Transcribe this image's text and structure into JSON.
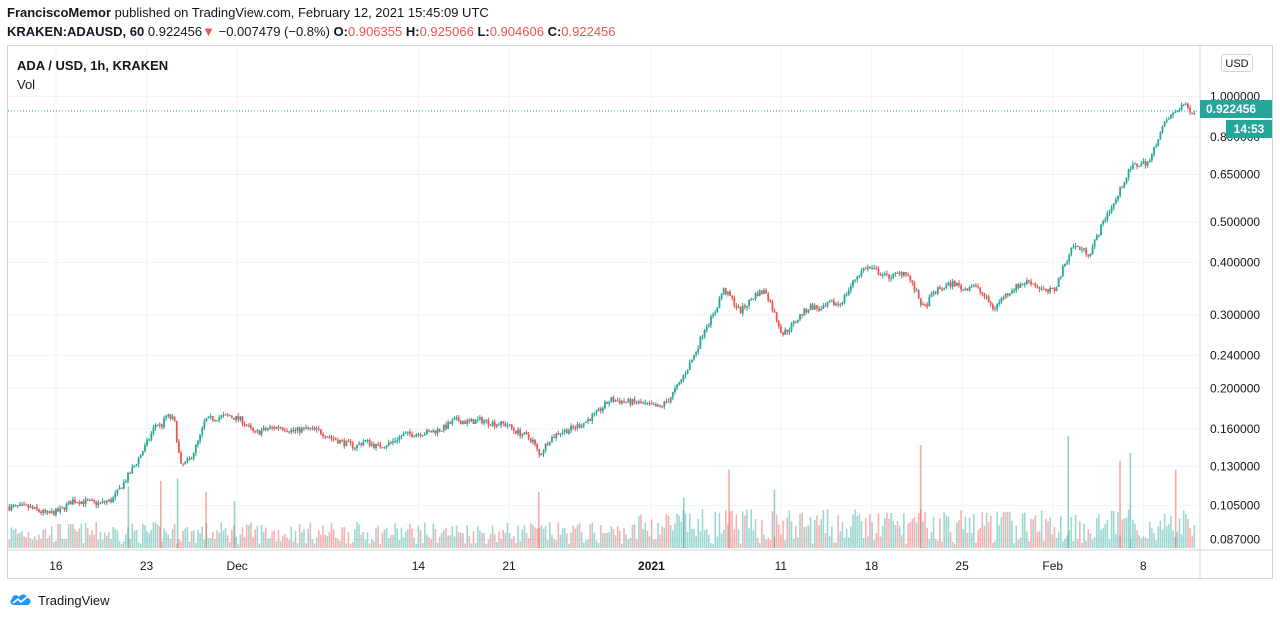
{
  "header": {
    "author": "FranciscoMemor",
    "published_text": "published on TradingView.com, February 12, 2021 15:45:09 UTC",
    "symbol": "KRAKEN:ADAUSD, 60",
    "last": "0.922456",
    "change": "−0.007479 (−0.8%)",
    "o_label": "O:",
    "o": "0.906355",
    "h_label": "H:",
    "h": "0.925066",
    "l_label": "L:",
    "l": "0.904606",
    "c_label": "C:",
    "c": "0.922456"
  },
  "pane": {
    "title": "ADA / USD, 1h, KRAKEN",
    "volume_label": "Vol",
    "currency_badge": "USD",
    "last_price_tag": "0.922456",
    "countdown_tag": "14:53"
  },
  "footer": {
    "brand": "TradingView"
  },
  "colors": {
    "up": "#26a69a",
    "down": "#ef5350",
    "grid": "#f0f3fa",
    "axis_text": "#131722"
  },
  "chart_data": {
    "type": "line",
    "scale": "log",
    "title": "ADA / USD, 1h, KRAKEN",
    "ylabel": "USD",
    "ylim": [
      0.083,
      1.32
    ],
    "y_ticks": [
      {
        "value": 1.0,
        "label": "1.000000"
      },
      {
        "value": 0.8,
        "label": "0.800000"
      },
      {
        "value": 0.65,
        "label": "0.650000"
      },
      {
        "value": 0.5,
        "label": "0.500000"
      },
      {
        "value": 0.4,
        "label": "0.400000"
      },
      {
        "value": 0.3,
        "label": "0.300000"
      },
      {
        "value": 0.24,
        "label": "0.240000"
      },
      {
        "value": 0.2,
        "label": "0.200000"
      },
      {
        "value": 0.16,
        "label": "0.160000"
      },
      {
        "value": 0.13,
        "label": "0.130000"
      },
      {
        "value": 0.105,
        "label": "0.105000"
      },
      {
        "value": 0.087,
        "label": "0.087000"
      }
    ],
    "x_ticks": [
      {
        "day": 0,
        "label": "16"
      },
      {
        "day": 7,
        "label": "23"
      },
      {
        "day": 14,
        "label": "Dec"
      },
      {
        "day": 28,
        "label": "14"
      },
      {
        "day": 35,
        "label": "21"
      },
      {
        "day": 46,
        "label": "2021"
      },
      {
        "day": 56,
        "label": "11"
      },
      {
        "day": 63,
        "label": "18"
      },
      {
        "day": 70,
        "label": "25"
      },
      {
        "day": 77,
        "label": "Feb"
      },
      {
        "day": 84,
        "label": "8"
      }
    ],
    "x_range_days": [
      -3.7,
      88.3
    ],
    "x_start": "2020-11-12",
    "price_path": [
      [
        -3.6,
        0.104
      ],
      [
        -2.0,
        0.104
      ],
      [
        -0.5,
        0.1
      ],
      [
        0.5,
        0.102
      ],
      [
        1.5,
        0.108
      ],
      [
        2.5,
        0.107
      ],
      [
        3.5,
        0.106
      ],
      [
        4.5,
        0.108
      ],
      [
        5.5,
        0.12
      ],
      [
        6.5,
        0.135
      ],
      [
        7.3,
        0.15
      ],
      [
        7.9,
        0.165
      ],
      [
        8.3,
        0.162
      ],
      [
        8.7,
        0.172
      ],
      [
        9.3,
        0.168
      ],
      [
        9.8,
        0.13
      ],
      [
        10.5,
        0.135
      ],
      [
        11.2,
        0.15
      ],
      [
        11.7,
        0.168
      ],
      [
        12.5,
        0.17
      ],
      [
        13.5,
        0.172
      ],
      [
        14.5,
        0.168
      ],
      [
        15.5,
        0.156
      ],
      [
        16.5,
        0.16
      ],
      [
        17.5,
        0.162
      ],
      [
        18.5,
        0.158
      ],
      [
        19.5,
        0.16
      ],
      [
        20.5,
        0.158
      ],
      [
        21.5,
        0.152
      ],
      [
        22.5,
        0.148
      ],
      [
        23.3,
        0.145
      ],
      [
        24.0,
        0.15
      ],
      [
        25.0,
        0.145
      ],
      [
        26.0,
        0.148
      ],
      [
        27.0,
        0.155
      ],
      [
        28.0,
        0.156
      ],
      [
        29.0,
        0.157
      ],
      [
        30.0,
        0.16
      ],
      [
        31.0,
        0.168
      ],
      [
        32.0,
        0.166
      ],
      [
        33.0,
        0.168
      ],
      [
        34.0,
        0.165
      ],
      [
        35.0,
        0.164
      ],
      [
        35.5,
        0.159
      ],
      [
        36.3,
        0.155
      ],
      [
        37.0,
        0.15
      ],
      [
        37.5,
        0.138
      ],
      [
        38.2,
        0.15
      ],
      [
        39.0,
        0.157
      ],
      [
        40.0,
        0.16
      ],
      [
        41.0,
        0.166
      ],
      [
        42.0,
        0.175
      ],
      [
        43.0,
        0.188
      ],
      [
        44.0,
        0.186
      ],
      [
        45.0,
        0.185
      ],
      [
        46.0,
        0.182
      ],
      [
        46.8,
        0.18
      ],
      [
        47.5,
        0.188
      ],
      [
        48.3,
        0.205
      ],
      [
        49.0,
        0.225
      ],
      [
        49.6,
        0.245
      ],
      [
        50.3,
        0.28
      ],
      [
        51.0,
        0.3
      ],
      [
        51.7,
        0.345
      ],
      [
        52.3,
        0.33
      ],
      [
        53.0,
        0.305
      ],
      [
        53.7,
        0.322
      ],
      [
        54.3,
        0.338
      ],
      [
        55.0,
        0.342
      ],
      [
        55.7,
        0.3
      ],
      [
        56.3,
        0.27
      ],
      [
        57.0,
        0.282
      ],
      [
        57.7,
        0.3
      ],
      [
        58.5,
        0.315
      ],
      [
        59.3,
        0.308
      ],
      [
        60.0,
        0.32
      ],
      [
        60.7,
        0.318
      ],
      [
        61.3,
        0.34
      ],
      [
        62.0,
        0.37
      ],
      [
        62.7,
        0.39
      ],
      [
        63.5,
        0.383
      ],
      [
        64.3,
        0.37
      ],
      [
        65.0,
        0.373
      ],
      [
        65.8,
        0.382
      ],
      [
        66.5,
        0.345
      ],
      [
        67.2,
        0.31
      ],
      [
        68.0,
        0.34
      ],
      [
        68.8,
        0.35
      ],
      [
        69.5,
        0.358
      ],
      [
        70.3,
        0.345
      ],
      [
        71.0,
        0.355
      ],
      [
        71.8,
        0.335
      ],
      [
        72.6,
        0.31
      ],
      [
        73.3,
        0.33
      ],
      [
        74.0,
        0.345
      ],
      [
        74.7,
        0.355
      ],
      [
        75.4,
        0.362
      ],
      [
        76.0,
        0.35
      ],
      [
        76.7,
        0.34
      ],
      [
        77.3,
        0.345
      ],
      [
        78.0,
        0.39
      ],
      [
        78.7,
        0.44
      ],
      [
        79.4,
        0.43
      ],
      [
        80.0,
        0.42
      ],
      [
        80.7,
        0.47
      ],
      [
        81.3,
        0.52
      ],
      [
        82.0,
        0.56
      ],
      [
        82.7,
        0.63
      ],
      [
        83.3,
        0.68
      ],
      [
        84.0,
        0.69
      ],
      [
        84.7,
        0.7
      ],
      [
        85.3,
        0.8
      ],
      [
        86.0,
        0.88
      ],
      [
        86.7,
        0.92
      ],
      [
        87.2,
        0.96
      ],
      [
        87.7,
        0.93
      ],
      [
        88.1,
        0.922
      ]
    ],
    "volume_spikes": [
      {
        "day": 5.6,
        "h": 0.55
      },
      {
        "day": 8.1,
        "h": 0.6
      },
      {
        "day": 9.4,
        "h": 0.62
      },
      {
        "day": 11.6,
        "h": 0.5
      },
      {
        "day": 13.8,
        "h": 0.42
      },
      {
        "day": 37.3,
        "h": 0.5
      },
      {
        "day": 48.5,
        "h": 0.45
      },
      {
        "day": 52.0,
        "h": 0.7
      },
      {
        "day": 55.5,
        "h": 0.52
      },
      {
        "day": 66.8,
        "h": 0.92
      },
      {
        "day": 78.2,
        "h": 1.0
      },
      {
        "day": 82.2,
        "h": 0.78
      },
      {
        "day": 83.0,
        "h": 0.85
      },
      {
        "day": 86.5,
        "h": 0.7
      }
    ]
  }
}
